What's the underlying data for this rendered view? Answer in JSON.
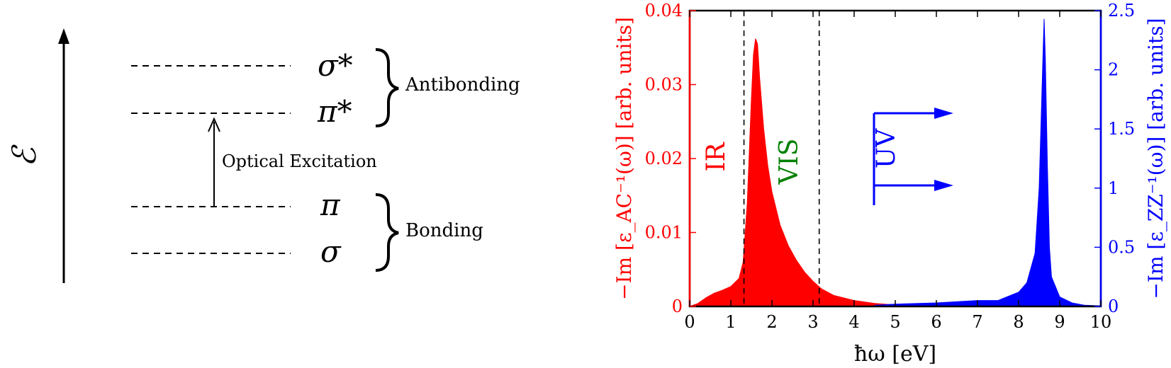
{
  "diagram": {
    "energy_symbol": "ℰ",
    "levels": [
      {
        "symbol": "σ*"
      },
      {
        "symbol": "π*"
      },
      {
        "symbol": "π"
      },
      {
        "symbol": "σ"
      }
    ],
    "antibonding_label": "Antibonding",
    "bonding_label": "Bonding",
    "excitation_label": "Optical Excitation"
  },
  "chart_data": {
    "type": "area",
    "xlabel": "ħω [eV]",
    "ylabel_left": "−Im [ε_AC⁻¹(ω)] [arb. units]",
    "ylabel_right": "−Im [ε_ZZ⁻¹(ω)] [arb. units]",
    "xlim": [
      0,
      10
    ],
    "ylim_left": [
      0,
      0.04
    ],
    "ylim_right": [
      0,
      2.5
    ],
    "x_ticks": [
      "0",
      "1",
      "2",
      "3",
      "4",
      "5",
      "6",
      "7",
      "8",
      "9",
      "10"
    ],
    "y_ticks_left": [
      "0",
      "0.01",
      "0.02",
      "0.03",
      "0.04"
    ],
    "y_ticks_right": [
      "0",
      "0.5",
      "1",
      "1.5",
      "2",
      "2.5"
    ],
    "vlines": [
      1.32,
      3.15
    ],
    "region_labels": [
      {
        "text": "IR",
        "color": "#ff0000"
      },
      {
        "text": "VIS",
        "color": "#008000"
      },
      {
        "text": "UV",
        "color": "#0000ff"
      }
    ],
    "series": [
      {
        "axis": "left",
        "color": "#ff0000",
        "x": [
          0,
          0.2,
          0.4,
          0.6,
          0.8,
          1.0,
          1.2,
          1.3,
          1.4,
          1.5,
          1.55,
          1.6,
          1.65,
          1.7,
          1.8,
          1.9,
          2.0,
          2.2,
          2.4,
          2.6,
          2.8,
          3.0,
          3.2,
          3.5,
          4.0,
          4.5,
          5.0
        ],
        "y": [
          0,
          0.0004,
          0.0012,
          0.0018,
          0.0022,
          0.0027,
          0.0038,
          0.006,
          0.014,
          0.028,
          0.034,
          0.0362,
          0.0355,
          0.031,
          0.024,
          0.019,
          0.0155,
          0.011,
          0.0082,
          0.0062,
          0.0046,
          0.0034,
          0.0024,
          0.0015,
          0.0008,
          0.0004,
          0.0002
        ]
      },
      {
        "axis": "right",
        "color": "#0000ff",
        "x": [
          4.5,
          5.0,
          6.0,
          7.0,
          7.5,
          8.0,
          8.2,
          8.4,
          8.5,
          8.55,
          8.6,
          8.62,
          8.65,
          8.7,
          8.75,
          8.8,
          9.0,
          9.3,
          9.6,
          10.0
        ],
        "y": [
          0.01,
          0.02,
          0.03,
          0.05,
          0.05,
          0.12,
          0.2,
          0.45,
          1.0,
          1.6,
          2.2,
          2.43,
          2.1,
          1.2,
          0.5,
          0.25,
          0.08,
          0.03,
          0.01,
          0.005
        ]
      }
    ]
  }
}
